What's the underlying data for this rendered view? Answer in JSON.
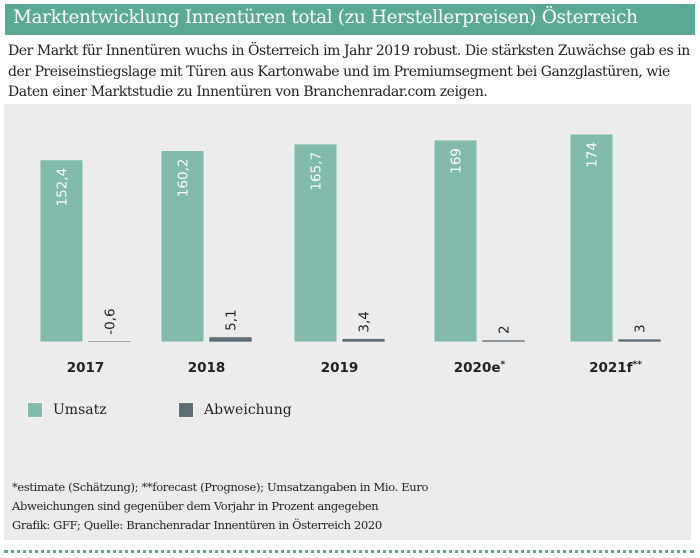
{
  "header": {
    "title": "Marktentwicklung Innentüren total (zu Herstellerpreisen) Österreich"
  },
  "intro": {
    "text": "Der Markt für Innentüren wuchs in Österreich im Jahr 2019 robust. Die stärksten Zuwächse gab es in der Preiseinstiegslage mit Türen aus Kartonwabe und im Premiumsegment bei Ganzglastüren, wie Daten einer Marktstudie zu Innentüren von Branchenradar.com zeigen."
  },
  "colors": {
    "brand": "#5aa994",
    "umsatz": "#82bbab",
    "abweichung": "#5e6c73",
    "panel": "#ececec"
  },
  "chart_data": {
    "type": "bar",
    "title": "Marktentwicklung Innentüren total (zu Herstellerpreisen) Österreich",
    "xlabel": "",
    "ylabel": "",
    "categories": [
      "2017",
      "2018",
      "2019",
      "2020e*",
      "2021f**"
    ],
    "series": [
      {
        "name": "Umsatz",
        "unit": "Mio. Euro",
        "values": [
          152.4,
          160.2,
          165.7,
          169,
          174
        ],
        "labels": [
          "152,4",
          "160,2",
          "165,7",
          "169",
          "174"
        ]
      },
      {
        "name": "Abweichung",
        "unit": "% gegenüber Vorjahr",
        "values": [
          -0.6,
          5.1,
          3.4,
          2,
          3
        ],
        "labels": [
          "-0,6",
          "5,1",
          "3,4",
          "2",
          "3"
        ]
      }
    ],
    "ylim": [
      0,
      174
    ],
    "grid": false,
    "legend": "bottom-left",
    "notes": [
      "*estimate (Schätzung); **forecast (Prognose); Umsatzangaben in Mio. Euro",
      "Abweichungen sind gegenüber dem Vorjahr in Prozent angegeben",
      "Grafik: GFF; Quelle: Branchenradar Innentüren in Österreich 2020"
    ]
  },
  "legend": {
    "items": [
      {
        "label": "Umsatz"
      },
      {
        "label": "Abweichung"
      }
    ]
  },
  "footer": {
    "notes": [
      "*estimate (Schätzung); **forecast (Prognose); Umsatzangaben in Mio. Euro",
      "Abweichungen sind gegenüber dem Vorjahr in Prozent angegeben",
      "Grafik: GFF; Quelle: Branchenradar Innentüren in Österreich 2020"
    ]
  }
}
